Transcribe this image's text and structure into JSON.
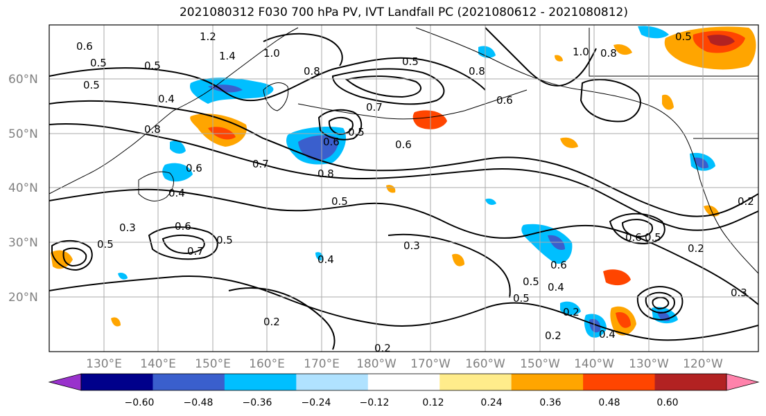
{
  "title": "2021080312 F030 700 hPa PV, IVT Landfall PC (2021080612 - 2021080812)",
  "latitude_labels": [
    "60°N",
    "50°N",
    "40°N",
    "30°N",
    "20°N"
  ],
  "longitude_labels": [
    "130°E",
    "140°E",
    "150°E",
    "160°E",
    "170°E",
    "180°W",
    "170°W",
    "160°W",
    "150°W",
    "140°W",
    "130°W",
    "120°W"
  ],
  "colorbar": {
    "ticks": [
      "−0.60",
      "−0.48",
      "−0.36",
      "−0.24",
      "−0.12",
      "0.12",
      "0.24",
      "0.36",
      "0.48",
      "0.60"
    ],
    "colors": [
      "#9932cc",
      "#00008b",
      "#3a5fcd",
      "#00bfff",
      "#b0e2ff",
      "#ffffff",
      "#ffec8b",
      "#ffa500",
      "#ff4500",
      "#b22222",
      "#ff82ab"
    ]
  },
  "contour_labels": [
    "0.6",
    "0.5",
    "1.2",
    "1.4",
    "1.0",
    "0.5",
    "0.4",
    "0.8",
    "0.5",
    "0.8",
    "0.7",
    "0.6",
    "0.5",
    "0.6",
    "0.7",
    "0.8",
    "0.6",
    "0.4",
    "0.5",
    "0.3",
    "0.6",
    "0.7",
    "0.5",
    "0.5",
    "0.3",
    "0.4",
    "0.2",
    "0.6",
    "0.5",
    "0.5",
    "0.4",
    "0.2",
    "0.2",
    "0.4",
    "0.2",
    "0.3",
    "0.6",
    "0.5",
    "0.2",
    "0.5",
    "0.8",
    "1.0",
    "0.8",
    "0.6",
    "0.5",
    "0.2"
  ]
}
